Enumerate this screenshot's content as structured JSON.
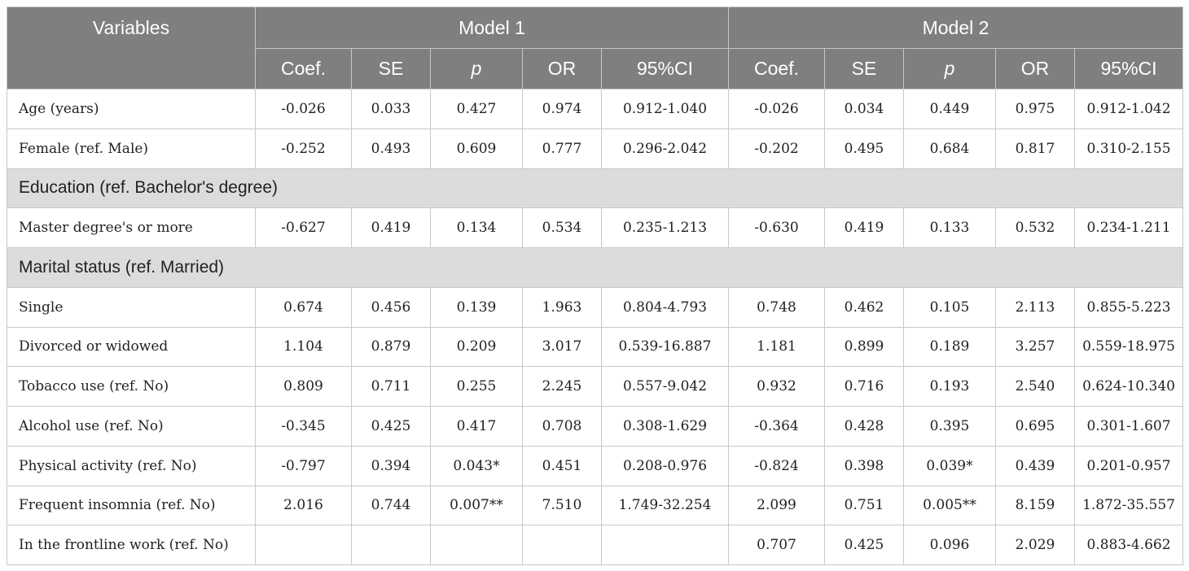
{
  "header": {
    "variables": "Variables",
    "model1": "Model 1",
    "model2": "Model 2",
    "cols": [
      "Coef.",
      "SE",
      "p",
      "OR",
      "95%CI"
    ]
  },
  "rows": [
    {
      "type": "data",
      "label": "Age (years)",
      "m1": [
        "-0.026",
        "0.033",
        "0.427",
        "0.974",
        "0.912-1.040"
      ],
      "m2": [
        "-0.026",
        "0.034",
        "0.449",
        "0.975",
        "0.912-1.042"
      ]
    },
    {
      "type": "data",
      "label": "Female (ref. Male)",
      "m1": [
        "-0.252",
        "0.493",
        "0.609",
        "0.777",
        "0.296-2.042"
      ],
      "m2": [
        "-0.202",
        "0.495",
        "0.684",
        "0.817",
        "0.310-2.155"
      ]
    },
    {
      "type": "section",
      "label": "Education (ref. Bachelor's degree)"
    },
    {
      "type": "data",
      "label": "Master degree's or more",
      "m1": [
        "-0.627",
        "0.419",
        "0.134",
        "0.534",
        "0.235-1.213"
      ],
      "m2": [
        "-0.630",
        "0.419",
        "0.133",
        "0.532",
        "0.234-1.211"
      ]
    },
    {
      "type": "section",
      "label": "Marital status (ref. Married)"
    },
    {
      "type": "data",
      "label": "Single",
      "m1": [
        "0.674",
        "0.456",
        "0.139",
        "1.963",
        "0.804-4.793"
      ],
      "m2": [
        "0.748",
        "0.462",
        "0.105",
        "2.113",
        "0.855-5.223"
      ]
    },
    {
      "type": "data",
      "label": "Divorced or widowed",
      "m1": [
        "1.104",
        "0.879",
        "0.209",
        "3.017",
        "0.539-16.887"
      ],
      "m2": [
        "1.181",
        "0.899",
        "0.189",
        "3.257",
        "0.559-18.975"
      ]
    },
    {
      "type": "data",
      "label": "Tobacco use (ref. No)",
      "m1": [
        "0.809",
        "0.711",
        "0.255",
        "2.245",
        "0.557-9.042"
      ],
      "m2": [
        "0.932",
        "0.716",
        "0.193",
        "2.540",
        "0.624-10.340"
      ]
    },
    {
      "type": "data",
      "label": "Alcohol use (ref. No)",
      "m1": [
        "-0.345",
        "0.425",
        "0.417",
        "0.708",
        "0.308-1.629"
      ],
      "m2": [
        "-0.364",
        "0.428",
        "0.395",
        "0.695",
        "0.301-1.607"
      ]
    },
    {
      "type": "data",
      "label": "Physical activity (ref. No)",
      "m1": [
        "-0.797",
        "0.394",
        "0.043*",
        "0.451",
        "0.208-0.976"
      ],
      "m2": [
        "-0.824",
        "0.398",
        "0.039*",
        "0.439",
        "0.201-0.957"
      ]
    },
    {
      "type": "data",
      "label": "Frequent insomnia (ref. No)",
      "m1": [
        "2.016",
        "0.744",
        "0.007**",
        "7.510",
        "1.749-32.254"
      ],
      "m2": [
        "2.099",
        "0.751",
        "0.005**",
        "8.159",
        "1.872-35.557"
      ]
    },
    {
      "type": "data",
      "label": "In the frontline work (ref. No)",
      "m1": [
        "",
        "",
        "",
        "",
        ""
      ],
      "m2": [
        "0.707",
        "0.425",
        "0.096",
        "2.029",
        "0.883-4.662"
      ]
    }
  ]
}
